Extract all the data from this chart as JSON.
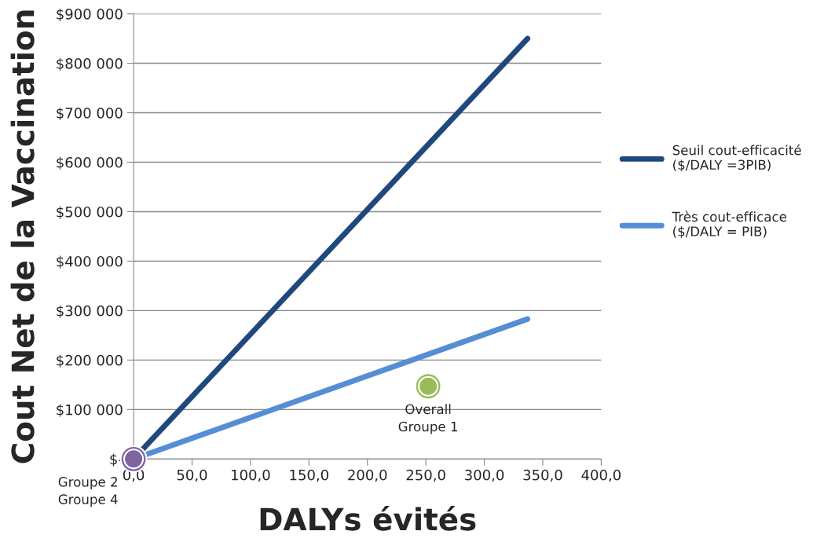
{
  "chart_data": {
    "type": "line",
    "xlabel": "DALYs évités",
    "ylabel": "Cout Net de la Vaccination",
    "xlim": [
      0,
      400
    ],
    "ylim": [
      0,
      900000
    ],
    "xticks": [
      {
        "value": 0,
        "label": "0,0"
      },
      {
        "value": 50,
        "label": "50,0"
      },
      {
        "value": 100,
        "label": "100,0"
      },
      {
        "value": 150,
        "label": "150,0"
      },
      {
        "value": 200,
        "label": "200,0"
      },
      {
        "value": 250,
        "label": "250,0"
      },
      {
        "value": 300,
        "label": "300,0"
      },
      {
        "value": 350,
        "label": "350,0"
      },
      {
        "value": 400,
        "label": "400,0"
      }
    ],
    "yticks": [
      {
        "value": 0,
        "label": "$-"
      },
      {
        "value": 100000,
        "label": "$100 000"
      },
      {
        "value": 200000,
        "label": "$200 000"
      },
      {
        "value": 300000,
        "label": "$300 000"
      },
      {
        "value": 400000,
        "label": "$400 000"
      },
      {
        "value": 500000,
        "label": "$500 000"
      },
      {
        "value": 600000,
        "label": "$600 000"
      },
      {
        "value": 700000,
        "label": "$700 000"
      },
      {
        "value": 800000,
        "label": "$800 000"
      },
      {
        "value": 900000,
        "label": "$900 000"
      }
    ],
    "grid": "y",
    "legend": "right",
    "marker": "none",
    "line_style": "solid",
    "series": [
      {
        "name": "Seuil cout-efficacité\n($/DALY =3PIB)",
        "color": "#1f497d",
        "x": [
          0,
          337
        ],
        "values": [
          0,
          850000
        ]
      },
      {
        "name": "Très cout-efficace\n($/DALY = PIB)",
        "color": "#558ed5",
        "x": [
          0,
          337
        ],
        "values": [
          0,
          283000
        ]
      },
      {
        "type": "scatter",
        "marker": "circle",
        "name": "Overall",
        "color": "#9bbb59",
        "x": [
          252
        ],
        "values": [
          147000
        ]
      },
      {
        "type": "scatter",
        "marker": "circle",
        "name": "Groupe 1",
        "color": "#9bbb59",
        "x": [
          252
        ],
        "values": [
          147000
        ]
      },
      {
        "type": "scatter",
        "marker": "circle",
        "name": "Groupe 2",
        "color": "#8064a2",
        "x": [
          0
        ],
        "values": [
          0
        ]
      },
      {
        "type": "scatter",
        "marker": "circle",
        "name": "Groupe 4",
        "color": "#8064a2",
        "x": [
          0
        ],
        "values": [
          0
        ]
      }
    ]
  }
}
